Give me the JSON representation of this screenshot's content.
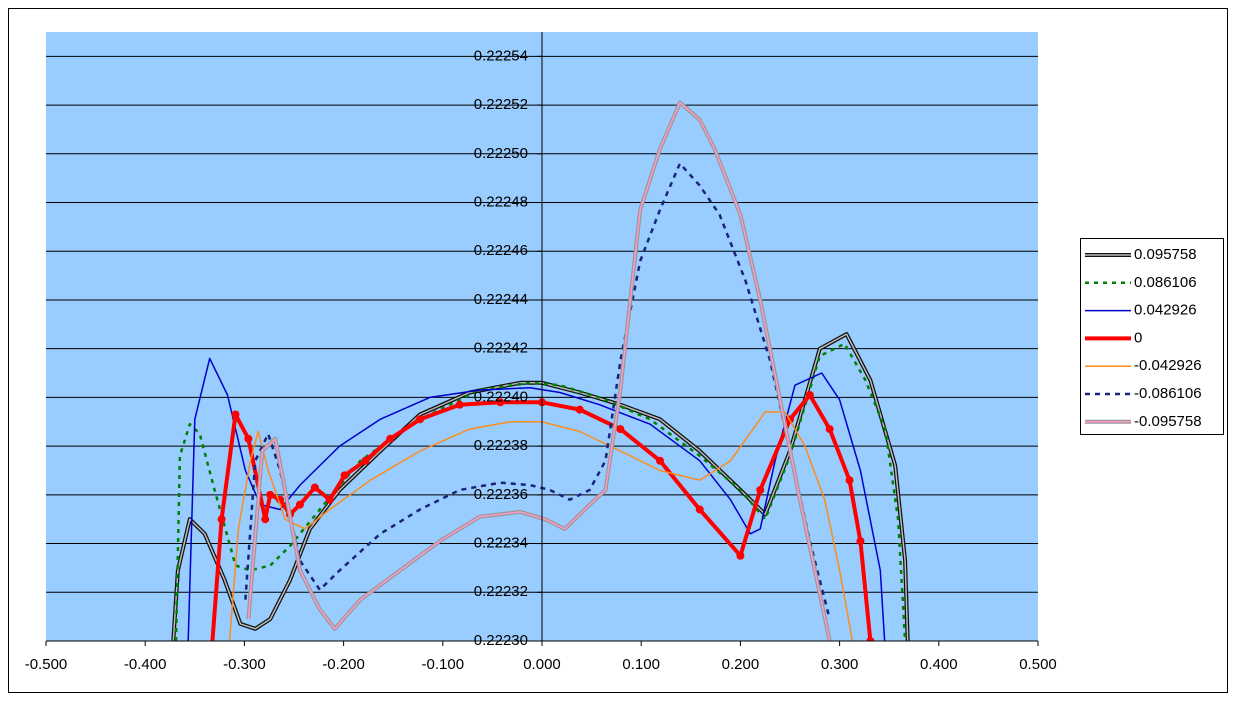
{
  "chart_data": {
    "type": "line",
    "xlim": [
      -0.5,
      0.5
    ],
    "xticks": [
      {
        "value": -0.5,
        "label": "-0.500"
      },
      {
        "value": -0.4,
        "label": "-0.400"
      },
      {
        "value": -0.3,
        "label": "-0.300"
      },
      {
        "value": -0.2,
        "label": "-0.200"
      },
      {
        "value": -0.1,
        "label": "-0.100"
      },
      {
        "value": 0,
        "label": "0.000"
      },
      {
        "value": 0.1,
        "label": "0.100"
      },
      {
        "value": 0.2,
        "label": "0.200"
      },
      {
        "value": 0.3,
        "label": "0.300"
      },
      {
        "value": 0.4,
        "label": "0.400"
      },
      {
        "value": 0.5,
        "label": "0.500"
      }
    ],
    "ylim": [
      0.2223,
      0.22255
    ],
    "yticks": [
      {
        "value": 0.2223,
        "label": "0.22230"
      },
      0.22232,
      0.22234,
      0.22236,
      0.22238,
      {
        "value": 0.2224,
        "label": "0.22240"
      },
      0.22242,
      0.22244,
      0.22246,
      0.22248,
      {
        "value": 0.2225,
        "label": "0.22250"
      },
      0.22252,
      0.22254
    ],
    "grid": true,
    "plot_color": "#99ccff",
    "legend": "right",
    "series": [
      {
        "name": "0.095758",
        "color": "#333333",
        "line_style": "hatched",
        "x": [
          -0.373,
          -0.367,
          -0.355,
          -0.34,
          -0.32,
          -0.304,
          -0.289,
          -0.274,
          -0.254,
          -0.234,
          -0.204,
          -0.163,
          -0.123,
          -0.073,
          -0.022,
          0,
          0.038,
          0.079,
          0.119,
          0.159,
          0.2,
          0.225,
          0.25,
          0.28,
          0.307,
          0.331,
          0.356,
          0.366,
          0.369
        ],
        "values": [
          0.222292,
          0.222329,
          0.22235,
          0.222344,
          0.222325,
          0.222307,
          0.222305,
          0.222309,
          0.222325,
          0.222346,
          0.222362,
          0.222378,
          0.222393,
          0.222402,
          0.222406,
          0.222406,
          0.222402,
          0.222397,
          0.222391,
          0.222378,
          0.222362,
          0.222352,
          0.222378,
          0.22242,
          0.222426,
          0.222407,
          0.222372,
          0.222333,
          0.222296
        ]
      },
      {
        "name": "0.086106",
        "color": "#008000",
        "line_style": "dotted",
        "x": [
          -0.369,
          -0.365,
          -0.355,
          -0.345,
          -0.33,
          -0.309,
          -0.294,
          -0.274,
          -0.254,
          -0.224,
          -0.183,
          -0.123,
          -0.063,
          -0.012,
          0.018,
          0.058,
          0.109,
          0.159,
          0.2,
          0.225,
          0.25,
          0.28,
          0.305,
          0.326,
          0.346,
          0.359,
          0.366
        ],
        "values": [
          0.2223,
          0.222376,
          0.222389,
          0.222385,
          0.222362,
          0.222331,
          0.222329,
          0.222331,
          0.222339,
          0.222354,
          0.222374,
          0.222391,
          0.222403,
          0.222406,
          0.222405,
          0.2224,
          0.222391,
          0.222376,
          0.222362,
          0.22235,
          0.222376,
          0.222417,
          0.222422,
          0.222407,
          0.222387,
          0.22235,
          0.2223
        ]
      },
      {
        "name": "0.042926",
        "color": "#0000cc",
        "line_style": "solid",
        "x": [
          -0.357,
          -0.35,
          -0.335,
          -0.317,
          -0.299,
          -0.284,
          -0.264,
          -0.244,
          -0.204,
          -0.163,
          -0.113,
          -0.063,
          -0.012,
          0.018,
          0.058,
          0.109,
          0.159,
          0.19,
          0.21,
          0.22,
          0.235,
          0.255,
          0.282,
          0.3,
          0.321,
          0.341,
          0.346
        ],
        "values": [
          0.222296,
          0.222391,
          0.222416,
          0.222401,
          0.22237,
          0.222356,
          0.222354,
          0.222364,
          0.22238,
          0.222391,
          0.2224,
          0.222403,
          0.222404,
          0.222402,
          0.222397,
          0.222389,
          0.222374,
          0.222358,
          0.222344,
          0.222346,
          0.222374,
          0.222405,
          0.22241,
          0.222399,
          0.22237,
          0.222329,
          0.222296
        ]
      },
      {
        "name": "0",
        "color": "#ff0000",
        "line_style": "bold",
        "markers": true,
        "x": [
          -0.333,
          -0.323,
          -0.309,
          -0.296,
          -0.279,
          -0.274,
          -0.264,
          -0.254,
          -0.244,
          -0.229,
          -0.214,
          -0.199,
          -0.178,
          -0.153,
          -0.123,
          -0.083,
          -0.042,
          0,
          0.038,
          0.079,
          0.119,
          0.159,
          0.2,
          0.22,
          0.25,
          0.27,
          0.29,
          0.31,
          0.321,
          0.331
        ],
        "values": [
          0.222296,
          0.22235,
          0.222393,
          0.222383,
          0.22235,
          0.22236,
          0.222358,
          0.222352,
          0.222356,
          0.222363,
          0.222358,
          0.222368,
          0.222374,
          0.222383,
          0.222391,
          0.222397,
          0.222398,
          0.222398,
          0.222395,
          0.222387,
          0.222374,
          0.222354,
          0.222335,
          0.222362,
          0.222391,
          0.222401,
          0.222387,
          0.222366,
          0.222341,
          0.2223
        ]
      },
      {
        "name": "-0.042926",
        "color": "#ff8c1a",
        "line_style": "solid",
        "x": [
          -0.315,
          -0.306,
          -0.294,
          -0.286,
          -0.276,
          -0.259,
          -0.239,
          -0.214,
          -0.173,
          -0.123,
          -0.073,
          -0.032,
          0,
          0.038,
          0.079,
          0.119,
          0.159,
          0.19,
          0.225,
          0.245,
          0.265,
          0.285,
          0.3,
          0.313
        ],
        "values": [
          0.2223,
          0.222346,
          0.222374,
          0.222386,
          0.22237,
          0.22235,
          0.222346,
          0.222354,
          0.222366,
          0.222378,
          0.222387,
          0.22239,
          0.22239,
          0.222386,
          0.222378,
          0.22237,
          0.222366,
          0.222374,
          0.222394,
          0.222394,
          0.22238,
          0.222358,
          0.222329,
          0.2223
        ]
      },
      {
        "name": "-0.086106",
        "color": "#1a237e",
        "line_style": "dashed",
        "x": [
          -0.299,
          -0.289,
          -0.276,
          -0.264,
          -0.244,
          -0.224,
          -0.204,
          -0.163,
          -0.123,
          -0.083,
          -0.042,
          -0.012,
          0.008,
          0.028,
          0.048,
          0.064,
          0.079,
          0.099,
          0.119,
          0.139,
          0.159,
          0.179,
          0.205,
          0.23,
          0.25,
          0.27,
          0.29
        ],
        "values": [
          0.222317,
          0.222374,
          0.222385,
          0.22237,
          0.222333,
          0.222321,
          0.222329,
          0.222344,
          0.222354,
          0.222362,
          0.222365,
          0.222364,
          0.222362,
          0.222358,
          0.222362,
          0.222374,
          0.222415,
          0.222456,
          0.222477,
          0.222496,
          0.222487,
          0.222475,
          0.222448,
          0.222415,
          0.222378,
          0.222341,
          0.222309
        ]
      },
      {
        "name": "-0.095758",
        "color": "#ff99cc",
        "line_style": "hatched",
        "x": [
          -0.296,
          -0.282,
          -0.269,
          -0.259,
          -0.244,
          -0.224,
          -0.209,
          -0.183,
          -0.143,
          -0.103,
          -0.063,
          -0.022,
          0.003,
          0.023,
          0.043,
          0.064,
          0.079,
          0.099,
          0.119,
          0.139,
          0.159,
          0.174,
          0.2,
          0.22,
          0.24,
          0.26,
          0.275,
          0.29
        ],
        "values": [
          0.222309,
          0.222378,
          0.222383,
          0.222362,
          0.222329,
          0.222313,
          0.222305,
          0.222317,
          0.222329,
          0.222341,
          0.222351,
          0.222353,
          0.22235,
          0.222346,
          0.222354,
          0.222362,
          0.222403,
          0.222477,
          0.222502,
          0.222521,
          0.222514,
          0.222502,
          0.222475,
          0.22244,
          0.222399,
          0.222358,
          0.222329,
          0.2223
        ]
      }
    ]
  }
}
